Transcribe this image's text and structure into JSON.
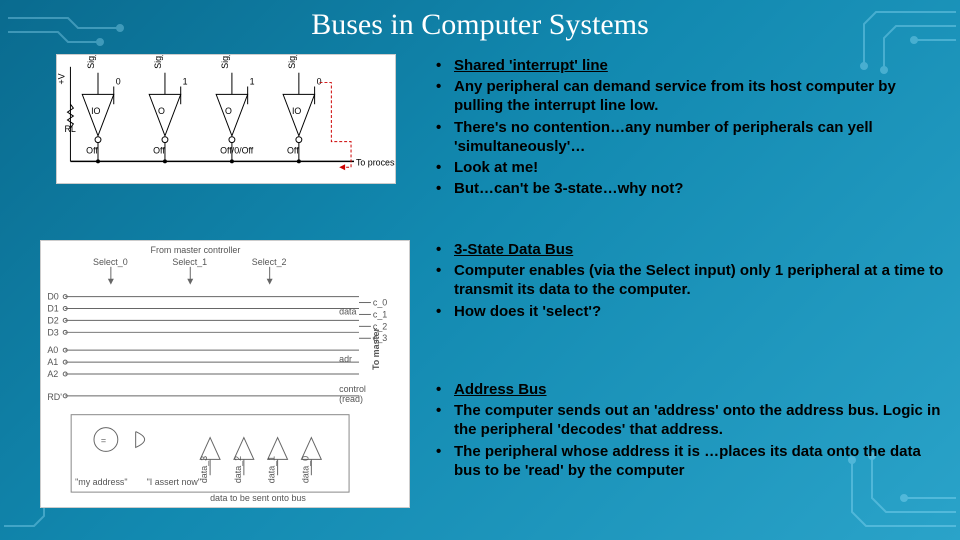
{
  "title": "Buses in Computer Systems",
  "background_gradient": [
    "#0a6b8f",
    "#1289b0",
    "#2aa3c9"
  ],
  "text_color": "#000000",
  "title_color": "#ffffff",
  "circuit_line_color": "#9fe6ff",
  "section1": {
    "heading": "Shared 'interrupt' line",
    "heading_color": "#000000",
    "items": [
      "Any peripheral can demand service from its host computer by pulling the interrupt line low.",
      "There's no contention…any number of peripherals can yell 'simultaneously'…",
      "Look at me!",
      "But…can't be 3-state…why not?"
    ]
  },
  "section2": {
    "heading": "3-State Data Bus",
    "heading_color": "#000000",
    "items": [
      "Computer enables (via the Select input) only 1 peripheral at a time to transmit its data to the computer.",
      "How does it 'select'?"
    ]
  },
  "section3": {
    "heading": "Address Bus",
    "heading_color": "#000000",
    "items": [
      "The computer sends out an 'address' onto the address bus. Logic in the peripheral 'decodes' that address.",
      "The peripheral whose address it is …places its data onto the data bus to be 'read' by the computer"
    ]
  },
  "diagram1": {
    "type": "circuit-schematic",
    "buffers": [
      {
        "label_top": "Sig_3",
        "label_sig": "0",
        "label_inside": "IO",
        "label_below": "Off"
      },
      {
        "label_top": "Sig_2",
        "label_sig": "1",
        "label_inside": "O",
        "label_below": "Off"
      },
      {
        "label_top": "Sig_1",
        "label_sig": "1",
        "label_inside": "O",
        "label_below": "Off/0/Off"
      },
      {
        "label_top": "Sig_0",
        "label_sig": "0",
        "label_inside": "IO",
        "label_below": "Off"
      }
    ],
    "left_labels": [
      "+V",
      "RL"
    ],
    "right_label": "To processor",
    "interrupt_color": "#cc0000",
    "wire_color": "#000000"
  },
  "diagram2": {
    "type": "bus-schematic",
    "top_label": "From master controller",
    "select_labels": [
      "Select_0",
      "Select_1",
      "Select_2"
    ],
    "data_lines": [
      "D0",
      "D1",
      "D2",
      "D3"
    ],
    "addr_lines": [
      "A0",
      "A1",
      "A2"
    ],
    "control_line": "RD'",
    "bus_group_labels": {
      "data": "data",
      "addr": "adr",
      "control": "control\n(read)"
    },
    "right_label": "To master",
    "parallel_out_labels": [
      "c_0",
      "c_1",
      "c_2",
      "c_3"
    ],
    "bottom_labels": {
      "my_address": "\"my address\"",
      "assert": "\"I assert now\"",
      "data_n": [
        "data_3",
        "data_2",
        "data_1",
        "data_0"
      ],
      "caption": "data to be sent onto bus"
    },
    "wire_color": "#666666"
  }
}
